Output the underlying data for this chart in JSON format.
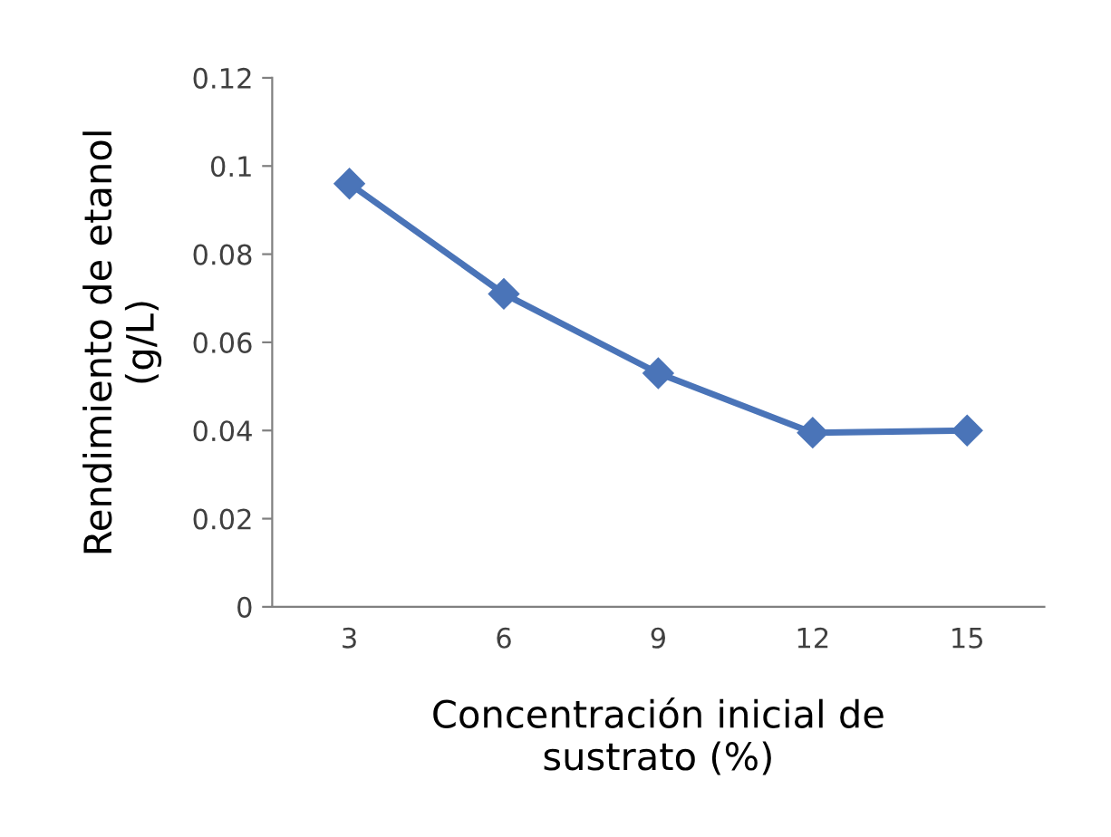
{
  "chart_data": {
    "type": "line",
    "xlabel": "Concentración inicial de\nsustrato (%)",
    "ylabel": "Rendimiento de etanol\n(g/L)",
    "categories": [
      "3",
      "6",
      "9",
      "12",
      "15"
    ],
    "series": [
      {
        "color": "#4a74b8",
        "values": [
          0.096,
          0.071,
          0.053,
          0.0395,
          0.04
        ]
      }
    ],
    "ylim": [
      0,
      0.12
    ],
    "yticks": [
      0,
      0.02,
      0.04,
      0.06,
      0.08,
      0.1,
      0.12
    ],
    "marker": "diamond",
    "line_style": "solid",
    "grid": false,
    "legend": false
  }
}
